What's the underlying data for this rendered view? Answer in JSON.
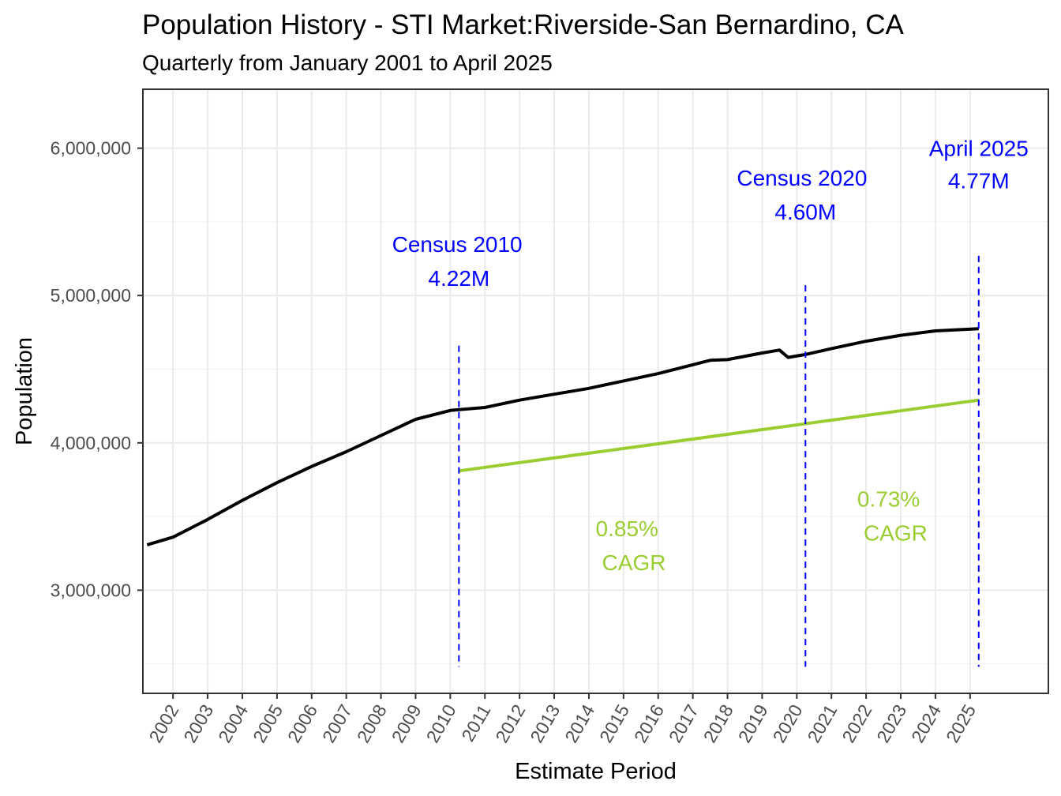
{
  "chart_data": {
    "type": "line",
    "title": "Population History - STI Market:Riverside-San Bernardino, CA",
    "subtitle": "Quarterly from January 2001 to April 2025",
    "xlabel": "Estimate Period",
    "ylabel": "Population",
    "xlim": [
      2001.13,
      2027.26
    ],
    "ylim": [
      2300000,
      6400000
    ],
    "x_ticks": [
      2002,
      2003,
      2004,
      2005,
      2006,
      2007,
      2008,
      2009,
      2010,
      2011,
      2012,
      2013,
      2014,
      2015,
      2016,
      2017,
      2018,
      2019,
      2020,
      2021,
      2022,
      2023,
      2024,
      2025
    ],
    "y_ticks": [
      3000000,
      4000000,
      5000000,
      6000000
    ],
    "y_tick_labels": [
      "3,000,000",
      "4,000,000",
      "5,000,000",
      "6,000,000"
    ],
    "grid": true,
    "series": [
      {
        "color": "#000000",
        "x": [
          2001.25,
          2002,
          2003,
          2004,
          2005,
          2006,
          2007,
          2008,
          2009,
          2010,
          2010.25,
          2011,
          2012,
          2013,
          2014,
          2015,
          2016,
          2017,
          2017.5,
          2018,
          2019,
          2019.5,
          2019.75,
          2020.25,
          2021,
          2022,
          2023,
          2024,
          2025.25
        ],
        "y": [
          3308000,
          3360000,
          3480000,
          3610000,
          3730000,
          3840000,
          3940000,
          4050000,
          4160000,
          4220000,
          4225000,
          4240000,
          4290000,
          4330000,
          4370000,
          4420000,
          4470000,
          4530000,
          4560000,
          4565000,
          4610000,
          4630000,
          4580000,
          4600000,
          4640000,
          4690000,
          4730000,
          4760000,
          4775000
        ]
      },
      {
        "color": "#9ACD32",
        "x": [
          2010.25,
          2025.25
        ],
        "y": [
          3810000,
          4290000
        ]
      }
    ],
    "vlines": [
      {
        "x": 2010.25,
        "y_top": 4660000,
        "y_bottom": 2480000,
        "color": "#0000FF",
        "style": "dashed"
      },
      {
        "x": 2020.25,
        "y_top": 5070000,
        "y_bottom": 2480000,
        "color": "#0000FF",
        "style": "dashed"
      },
      {
        "x": 2025.25,
        "y_top": 5270000,
        "y_bottom": 2480000,
        "color": "#0000FF",
        "style": "dashed"
      }
    ],
    "annotations": [
      {
        "text": "Census 2010",
        "x": 2010.2,
        "y": 5350000,
        "color": "#0000FF"
      },
      {
        "text": "4.22M",
        "x": 2010.25,
        "y": 5120000,
        "color": "#0000FF"
      },
      {
        "text": "Census 2020",
        "x": 2020.15,
        "y": 5800000,
        "color": "#0000FF"
      },
      {
        "text": "4.60M",
        "x": 2020.25,
        "y": 5570000,
        "color": "#0000FF"
      },
      {
        "text": "April 2025",
        "x": 2025.25,
        "y": 6000000,
        "color": "#0000FF"
      },
      {
        "text": "4.77M",
        "x": 2025.25,
        "y": 5780000,
        "color": "#0000FF"
      },
      {
        "text": "0.85%",
        "x": 2015.1,
        "y": 3420000,
        "color": "#9ACD32"
      },
      {
        "text": "CAGR",
        "x": 2015.3,
        "y": 3190000,
        "color": "#9ACD32"
      },
      {
        "text": "0.73%",
        "x": 2022.65,
        "y": 3620000,
        "color": "#9ACD32"
      },
      {
        "text": "CAGR",
        "x": 2022.85,
        "y": 3390000,
        "color": "#9ACD32"
      }
    ]
  }
}
